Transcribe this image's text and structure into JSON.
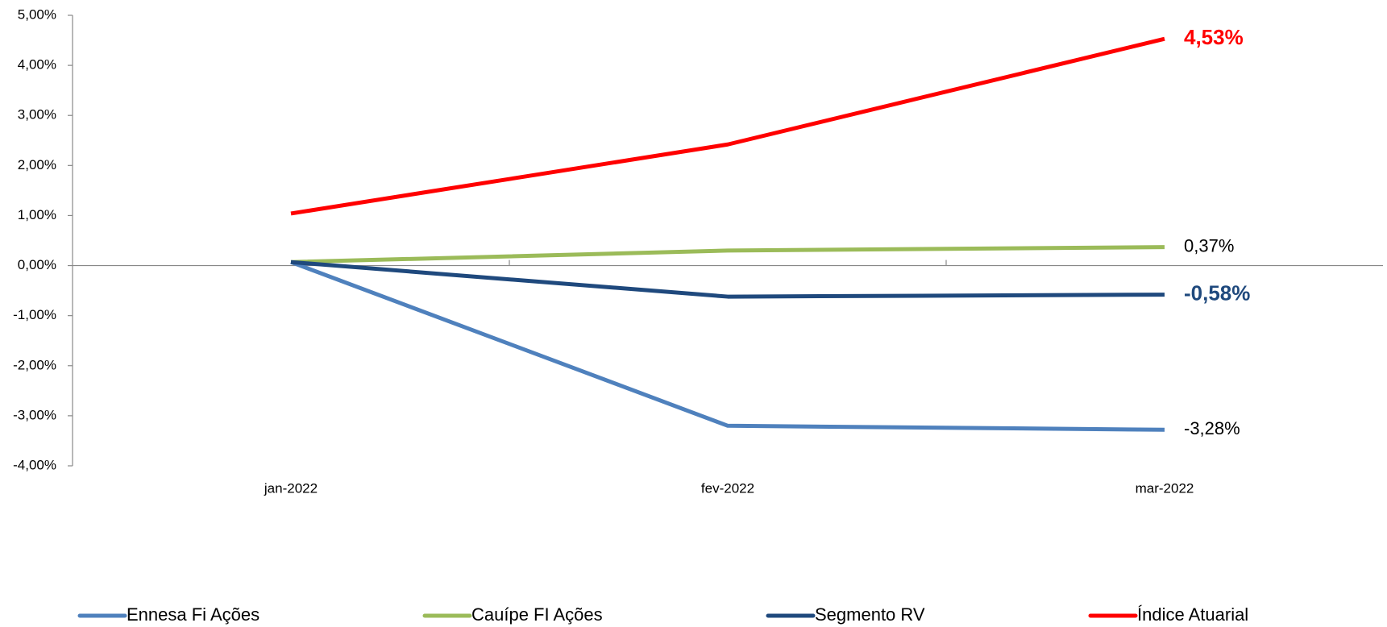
{
  "chart_data": {
    "type": "line",
    "categories": [
      "jan-2022",
      "fev-2022",
      "mar-2022"
    ],
    "series": [
      {
        "name": "Ennesa Fi Ações",
        "color": "#4f81bd",
        "values": [
          0.07,
          -3.2,
          -3.28
        ],
        "value_labels": [
          null,
          null,
          "-3,28%"
        ]
      },
      {
        "name": "Cauípe FI Ações",
        "color": "#9bbb59",
        "values": [
          0.07,
          0.3,
          0.37
        ],
        "value_labels": [
          null,
          null,
          "0,37%"
        ]
      },
      {
        "name": "Segmento RV",
        "color": "#1f497d",
        "values": [
          0.07,
          -0.62,
          -0.58
        ],
        "value_labels": [
          null,
          null,
          "-0,58%"
        ]
      },
      {
        "name": "Índice Atuarial",
        "color": "#ff0000",
        "values": [
          1.04,
          2.42,
          4.53
        ],
        "value_labels": [
          null,
          null,
          "4,53%"
        ]
      }
    ],
    "ylim": [
      -4,
      5
    ],
    "yticks": [
      {
        "value": -4,
        "label": "-4,00%"
      },
      {
        "value": -3,
        "label": "-3,00%"
      },
      {
        "value": -2,
        "label": "-2,00%"
      },
      {
        "value": -1,
        "label": "-1,00%"
      },
      {
        "value": 0,
        "label": "0,00%"
      },
      {
        "value": 1,
        "label": "1,00%"
      },
      {
        "value": 2,
        "label": "2,00%"
      },
      {
        "value": 3,
        "label": "3,00%"
      },
      {
        "value": 4,
        "label": "4,00%"
      },
      {
        "value": 5,
        "label": "5,00%"
      }
    ],
    "grid": false,
    "legend": "bottom"
  }
}
